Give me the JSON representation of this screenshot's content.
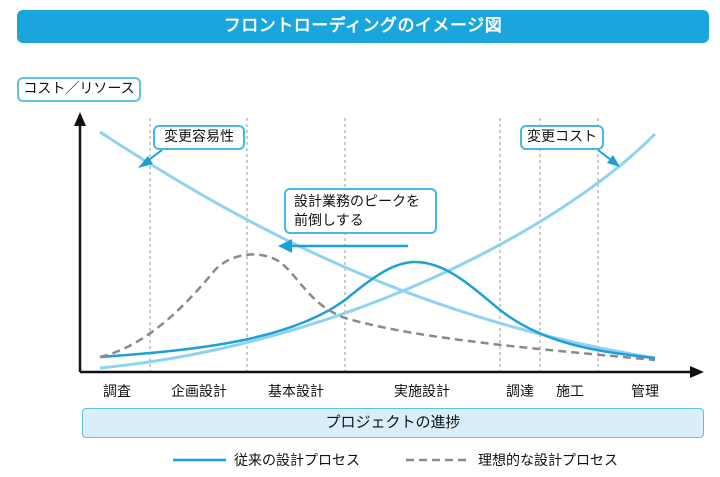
{
  "title": "フロントローディングのイメージ図",
  "y_axis_label": "コスト／リソース",
  "callouts": {
    "changeability": "変更容易性",
    "change_cost": "変更コスト",
    "shift_peak_line1": "設計業務のピークを",
    "shift_peak_line2": "前倒しする"
  },
  "stages": [
    "調査",
    "企画設計",
    "基本設計",
    "実施設計",
    "調達",
    "施工",
    "管理"
  ],
  "x_axis_label": "プロジェクトの進捗",
  "legend": {
    "conventional": "従来の設計プロセス",
    "ideal": "理想的な設計プロセス"
  },
  "colors": {
    "title_bg": "#1aa6dd",
    "light_blue": "#8fd3f0",
    "dark_blue": "#1ba0d8",
    "dashed_gray": "#8a8a8a",
    "progress_bg": "#d9eef9"
  }
}
